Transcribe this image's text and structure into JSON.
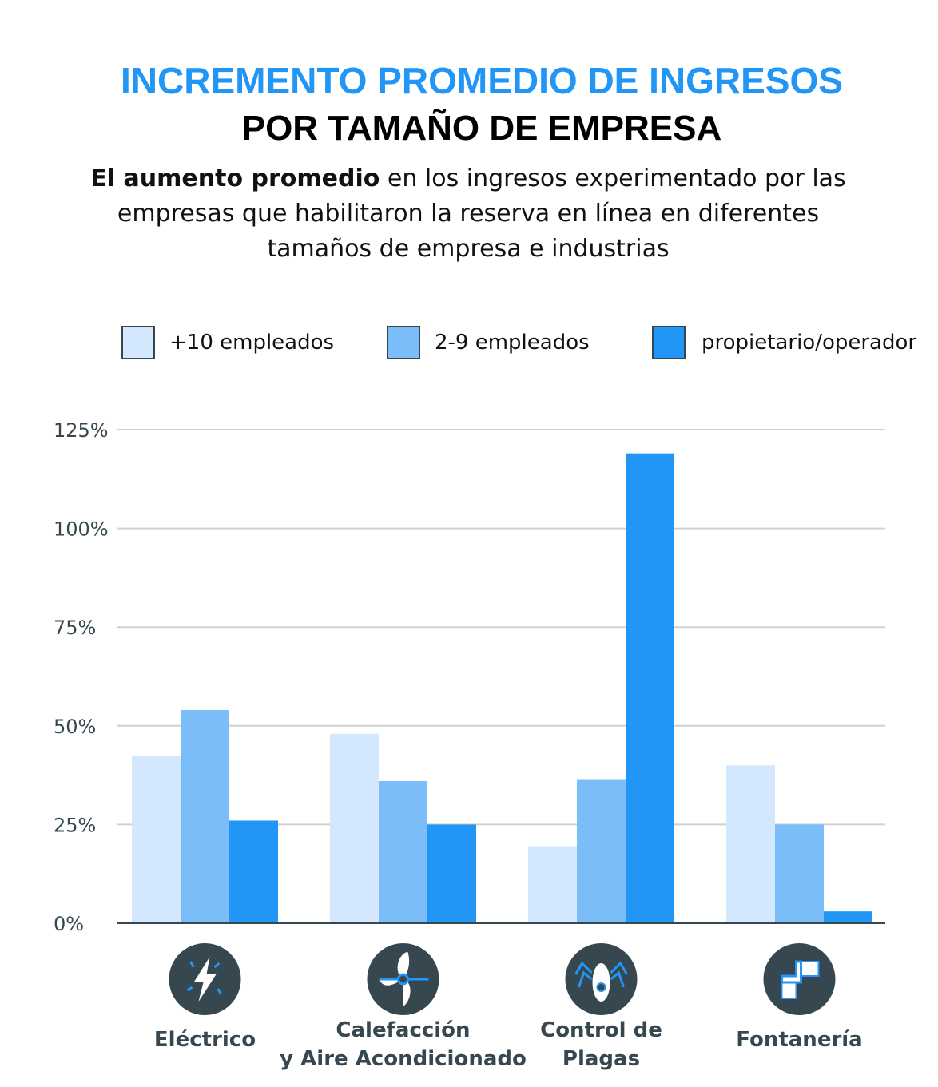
{
  "title_line1": "INCREMENTO PROMEDIO DE INGRESOS",
  "title_line2": "POR TAMAÑO DE EMPRESA",
  "subtitle_bold": "El aumento promedio",
  "subtitle_rest": " en los ingresos experimentado por las empresas que habilitaron la reserva en línea en diferentes tamaños de empresa e industrias",
  "colors": {
    "title": "#2196f7",
    "s1": "#d3e8fc",
    "s2": "#7bbdf9",
    "s3": "#2196f7",
    "icon_bg": "#37474f",
    "axis": "#37474f",
    "grid": "#d0d0d0"
  },
  "chart_data": {
    "type": "bar",
    "categories": [
      "Eléctrico",
      "Calefacción y Aire Acondicionado",
      "Control de Plagas",
      "Fontanería"
    ],
    "category_lines": [
      [
        "Eléctrico"
      ],
      [
        "Calefacción",
        "y Aire Acondicionado"
      ],
      [
        "Control de",
        "Plagas"
      ],
      [
        "Fontanería"
      ]
    ],
    "category_icons": [
      "lightning-icon",
      "fan-icon",
      "bug-icon",
      "pipe-icon"
    ],
    "series": [
      {
        "name": "+10 empleados",
        "values": [
          42.5,
          48,
          19.5,
          40
        ]
      },
      {
        "name": "2-9 empleados",
        "values": [
          54,
          36,
          36.5,
          25
        ]
      },
      {
        "name": "propietario/operador",
        "values": [
          26,
          25,
          119,
          3
        ]
      }
    ],
    "ylim": [
      0,
      125
    ],
    "yticks": [
      0,
      25,
      50,
      75,
      100,
      125
    ],
    "ytick_labels": [
      "0%",
      "25%",
      "50%",
      "75%",
      "100%",
      "125%"
    ],
    "grid": true,
    "legend": "top",
    "xlabel": "",
    "ylabel": ""
  }
}
